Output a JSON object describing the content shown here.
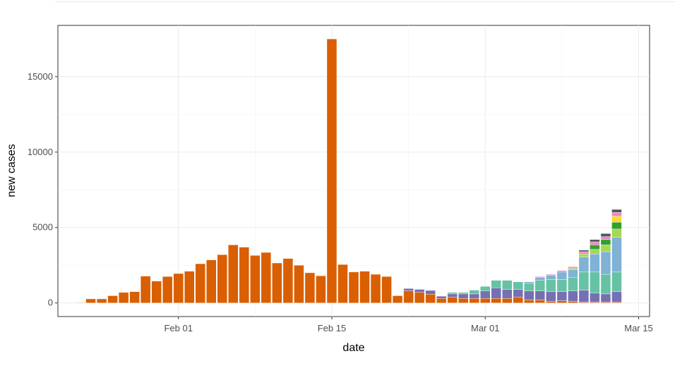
{
  "chart_data": {
    "type": "bar",
    "stacked": true,
    "title": "",
    "xlabel": "date",
    "ylabel": "new cases",
    "x_ticks": [
      "Feb 01",
      "Feb 15",
      "Mar 01",
      "Mar 15"
    ],
    "x_tick_days": [
      31,
      45,
      59,
      73
    ],
    "y_ticks": [
      0,
      5000,
      10000,
      15000
    ],
    "xlim_days": [
      20,
      74
    ],
    "ylim": [
      -900,
      18400
    ],
    "grid": true,
    "legend": "none",
    "days": [
      22,
      23,
      24,
      25,
      26,
      27,
      28,
      29,
      30,
      31,
      32,
      33,
      34,
      35,
      36,
      37,
      38,
      39,
      40,
      41,
      42,
      43,
      44,
      45,
      46,
      47,
      48,
      49,
      50,
      51,
      52,
      53,
      54,
      55,
      56,
      57,
      58,
      59,
      60,
      61,
      62,
      63,
      64,
      65,
      66,
      67,
      68,
      69,
      70,
      71
    ],
    "series": [
      {
        "color": "#d95f02",
        "values": [
          30,
          270,
          270,
          480,
          700,
          750,
          1780,
          1450,
          1750,
          1950,
          2100,
          2600,
          2850,
          3200,
          3850,
          3700,
          3150,
          3350,
          2650,
          2950,
          2500,
          2000,
          1800,
          17500,
          2550,
          2050,
          2100,
          1900,
          1750,
          480,
          810,
          700,
          580,
          300,
          400,
          300,
          300,
          300,
          300,
          300,
          400,
          200,
          200,
          100,
          150,
          100,
          50,
          50,
          50,
          50
        ]
      },
      {
        "color": "#7570b3",
        "values": [
          0,
          0,
          0,
          0,
          0,
          0,
          0,
          0,
          0,
          0,
          0,
          0,
          0,
          0,
          0,
          0,
          0,
          0,
          0,
          0,
          0,
          0,
          0,
          0,
          0,
          0,
          0,
          0,
          0,
          0,
          150,
          200,
          250,
          150,
          200,
          300,
          300,
          500,
          700,
          600,
          500,
          600,
          600,
          650,
          600,
          700,
          800,
          600,
          550,
          700
        ]
      },
      {
        "color": "#66c2a5",
        "values": [
          0,
          0,
          0,
          0,
          0,
          0,
          0,
          0,
          0,
          0,
          0,
          0,
          0,
          0,
          0,
          0,
          0,
          0,
          0,
          0,
          0,
          0,
          0,
          0,
          0,
          0,
          0,
          0,
          0,
          0,
          0,
          0,
          0,
          0,
          100,
          100,
          250,
          300,
          500,
          600,
          500,
          500,
          700,
          800,
          800,
          900,
          1200,
          1400,
          1300,
          1300
        ]
      },
      {
        "color": "#7fb2d5",
        "values": [
          0,
          0,
          0,
          0,
          0,
          0,
          0,
          0,
          0,
          0,
          0,
          0,
          0,
          0,
          0,
          0,
          0,
          0,
          0,
          0,
          0,
          0,
          0,
          0,
          0,
          0,
          0,
          0,
          0,
          0,
          0,
          0,
          0,
          0,
          0,
          0,
          0,
          0,
          0,
          0,
          0,
          100,
          200,
          300,
          500,
          500,
          1000,
          1200,
          1500,
          2300
        ]
      },
      {
        "color": "#a6d854",
        "values": [
          0,
          0,
          0,
          0,
          0,
          0,
          0,
          0,
          0,
          0,
          0,
          0,
          0,
          0,
          0,
          0,
          0,
          0,
          0,
          0,
          0,
          0,
          0,
          0,
          0,
          0,
          0,
          0,
          0,
          0,
          0,
          0,
          0,
          0,
          0,
          0,
          0,
          0,
          0,
          0,
          0,
          0,
          0,
          0,
          0,
          100,
          200,
          300,
          450,
          550
        ]
      },
      {
        "color": "#33a02c",
        "values": [
          0,
          0,
          0,
          0,
          0,
          0,
          0,
          0,
          0,
          0,
          0,
          0,
          0,
          0,
          0,
          0,
          0,
          0,
          0,
          0,
          0,
          0,
          0,
          0,
          0,
          0,
          0,
          0,
          0,
          0,
          0,
          0,
          0,
          0,
          0,
          0,
          0,
          0,
          0,
          0,
          0,
          0,
          0,
          0,
          0,
          0,
          0,
          300,
          350,
          450
        ]
      },
      {
        "color": "#ffd92f",
        "values": [
          0,
          0,
          0,
          0,
          0,
          0,
          0,
          0,
          0,
          0,
          0,
          0,
          0,
          0,
          0,
          0,
          0,
          0,
          0,
          0,
          0,
          0,
          0,
          0,
          0,
          0,
          0,
          0,
          0,
          0,
          0,
          0,
          0,
          0,
          0,
          0,
          0,
          0,
          0,
          0,
          0,
          0,
          0,
          0,
          0,
          0,
          0,
          0,
          0,
          400
        ]
      },
      {
        "color": "#e78ac3",
        "values": [
          0,
          0,
          0,
          0,
          0,
          0,
          0,
          0,
          0,
          0,
          0,
          0,
          0,
          0,
          0,
          0,
          0,
          0,
          0,
          0,
          0,
          0,
          0,
          0,
          0,
          0,
          0,
          0,
          0,
          0,
          0,
          0,
          0,
          0,
          0,
          0,
          0,
          0,
          0,
          0,
          0,
          0,
          50,
          50,
          100,
          100,
          150,
          200,
          200,
          250
        ]
      },
      {
        "color": "#555555",
        "values": [
          0,
          0,
          0,
          0,
          0,
          0,
          0,
          0,
          0,
          0,
          0,
          0,
          0,
          0,
          0,
          0,
          0,
          0,
          0,
          0,
          0,
          0,
          0,
          0,
          0,
          0,
          0,
          0,
          0,
          0,
          0,
          0,
          0,
          0,
          0,
          0,
          0,
          0,
          0,
          0,
          0,
          0,
          0,
          0,
          0,
          0,
          100,
          150,
          200,
          200
        ]
      }
    ]
  }
}
